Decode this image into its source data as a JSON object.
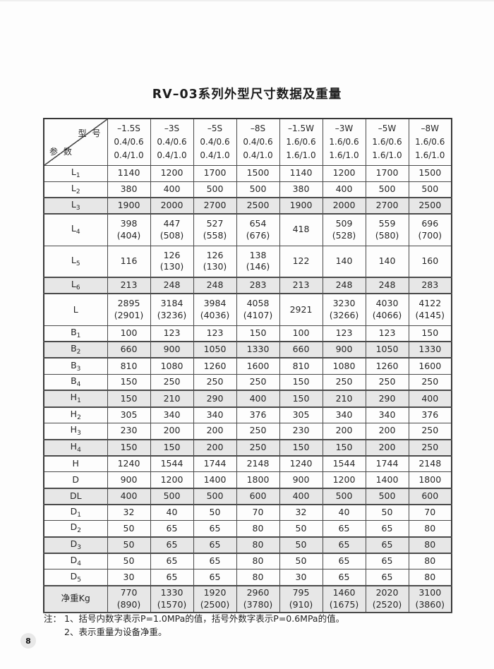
{
  "page": {
    "title": "RV–03系列外型尺寸数据及重量",
    "page_number": "8"
  },
  "colors": {
    "shaded_row": "#e7e7e7",
    "table_border": "#4a4a4a",
    "page_background": "#fdfdfd",
    "badge_background": "#e8e8e8"
  },
  "table": {
    "corner": {
      "top_right": "型 号",
      "bottom_left": "参 数"
    },
    "columns": [
      {
        "model": "–1.5S",
        "line2": "0.4/0.6",
        "line3": "0.4/1.0"
      },
      {
        "model": "–3S",
        "line2": "0.4/0.6",
        "line3": "0.4/1.0"
      },
      {
        "model": "–5S",
        "line2": "0.4/0.6",
        "line3": "0.4/1.0"
      },
      {
        "model": "–8S",
        "line2": "0.4/0.6",
        "line3": "0.4/1.0"
      },
      {
        "model": "–1.5W",
        "line2": "1.6/0.6",
        "line3": "1.6/1.0"
      },
      {
        "model": "–3W",
        "line2": "1.6/0.6",
        "line3": "1.6/1.0"
      },
      {
        "model": "–5W",
        "line2": "1.6/0.6",
        "line3": "1.6/1.0"
      },
      {
        "model": "–8W",
        "line2": "1.6/0.6",
        "line3": "1.6/1.0"
      }
    ],
    "rows": [
      {
        "label": "L",
        "sub": "1",
        "shaded": false,
        "values": [
          "1140",
          "1200",
          "1700",
          "1500",
          "1140",
          "1200",
          "1700",
          "1500"
        ]
      },
      {
        "label": "L",
        "sub": "2",
        "shaded": false,
        "values": [
          "380",
          "400",
          "500",
          "500",
          "380",
          "400",
          "500",
          "500"
        ]
      },
      {
        "label": "L",
        "sub": "3",
        "shaded": true,
        "values": [
          "1900",
          "2000",
          "2700",
          "2500",
          "1900",
          "2000",
          "2700",
          "2500"
        ]
      },
      {
        "label": "L",
        "sub": "4",
        "shaded": false,
        "values": [
          "398\n(404)",
          "447\n(508)",
          "527\n(558)",
          "654\n(676)",
          "418",
          "509\n(528)",
          "559\n(580)",
          "696\n(700)"
        ]
      },
      {
        "label": "L",
        "sub": "5",
        "shaded": false,
        "values": [
          "116",
          "126\n(130)",
          "126\n(130)",
          "138\n(146)",
          "122",
          "140",
          "140",
          "160"
        ]
      },
      {
        "label": "L",
        "sub": "6",
        "shaded": true,
        "values": [
          "213",
          "248",
          "248",
          "283",
          "213",
          "248",
          "248",
          "283"
        ]
      },
      {
        "label": "L",
        "sub": "",
        "shaded": false,
        "values": [
          "2895\n(2901)",
          "3184\n(3236)",
          "3984\n(4036)",
          "4058\n(4107)",
          "2921",
          "3230\n(3266)",
          "4030\n(4066)",
          "4122\n(4145)"
        ]
      },
      {
        "label": "B",
        "sub": "1",
        "shaded": false,
        "values": [
          "100",
          "123",
          "123",
          "150",
          "100",
          "123",
          "123",
          "150"
        ]
      },
      {
        "label": "B",
        "sub": "2",
        "shaded": true,
        "values": [
          "660",
          "900",
          "1050",
          "1330",
          "660",
          "900",
          "1050",
          "1330"
        ]
      },
      {
        "label": "B",
        "sub": "3",
        "shaded": false,
        "values": [
          "810",
          "1080",
          "1260",
          "1600",
          "810",
          "1080",
          "1260",
          "1600"
        ]
      },
      {
        "label": "B",
        "sub": "4",
        "shaded": false,
        "values": [
          "150",
          "250",
          "250",
          "250",
          "150",
          "250",
          "250",
          "250"
        ]
      },
      {
        "label": "H",
        "sub": "1",
        "shaded": true,
        "values": [
          "150",
          "210",
          "290",
          "400",
          "150",
          "210",
          "290",
          "400"
        ]
      },
      {
        "label": "H",
        "sub": "2",
        "shaded": false,
        "values": [
          "305",
          "340",
          "340",
          "376",
          "305",
          "340",
          "340",
          "376"
        ]
      },
      {
        "label": "H",
        "sub": "3",
        "shaded": false,
        "values": [
          "230",
          "200",
          "200",
          "250",
          "230",
          "200",
          "200",
          "250"
        ]
      },
      {
        "label": "H",
        "sub": "4",
        "shaded": true,
        "values": [
          "150",
          "150",
          "200",
          "250",
          "150",
          "150",
          "200",
          "250"
        ]
      },
      {
        "label": "H",
        "sub": "",
        "shaded": false,
        "values": [
          "1240",
          "1544",
          "1744",
          "2148",
          "1240",
          "1544",
          "1744",
          "2148"
        ]
      },
      {
        "label": "D",
        "sub": "",
        "shaded": false,
        "values": [
          "900",
          "1200",
          "1400",
          "1800",
          "900",
          "1200",
          "1400",
          "1800"
        ]
      },
      {
        "label": "DL",
        "sub": "",
        "shaded": true,
        "values": [
          "400",
          "500",
          "500",
          "600",
          "400",
          "500",
          "500",
          "600"
        ]
      },
      {
        "label": "D",
        "sub": "1",
        "shaded": false,
        "values": [
          "32",
          "40",
          "50",
          "70",
          "32",
          "40",
          "50",
          "70"
        ]
      },
      {
        "label": "D",
        "sub": "2",
        "shaded": false,
        "values": [
          "50",
          "65",
          "65",
          "80",
          "50",
          "65",
          "65",
          "80"
        ]
      },
      {
        "label": "D",
        "sub": "3",
        "shaded": true,
        "values": [
          "50",
          "65",
          "65",
          "80",
          "50",
          "65",
          "65",
          "80"
        ]
      },
      {
        "label": "D",
        "sub": "4",
        "shaded": false,
        "values": [
          "50",
          "65",
          "65",
          "80",
          "50",
          "65",
          "65",
          "80"
        ]
      },
      {
        "label": "D",
        "sub": "5",
        "shaded": false,
        "values": [
          "30",
          "65",
          "65",
          "80",
          "30",
          "65",
          "65",
          "80"
        ]
      },
      {
        "label": "净重Kg",
        "sub": "",
        "shaded": true,
        "values": [
          "770\n(890)",
          "1330\n(1570)",
          "1920\n(2500)",
          "2960\n(3780)",
          "795\n(910)",
          "1460\n(1675)",
          "2020\n(2520)",
          "3100\n(3860)"
        ]
      }
    ]
  },
  "notes": {
    "prefix": "注：",
    "items": [
      "1、括号内数字表示P=1.0MPa的值，括号外数字表示P=0.6MPa的值。",
      "2、表示重量为设备净重。"
    ]
  }
}
